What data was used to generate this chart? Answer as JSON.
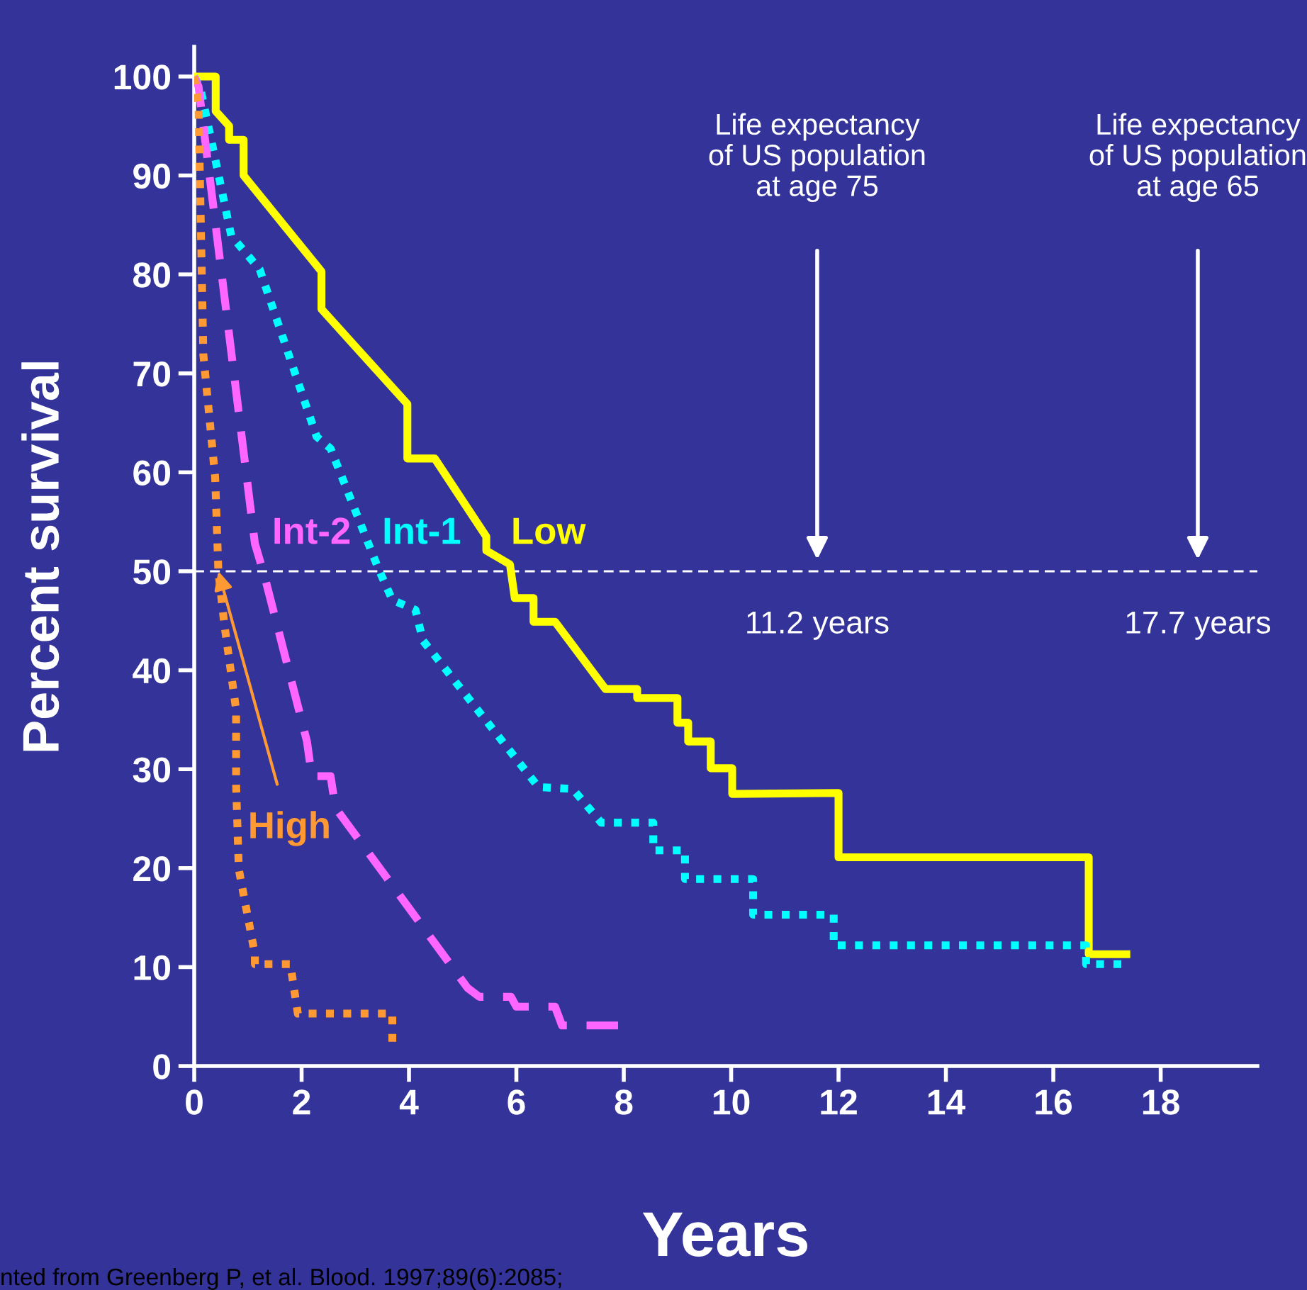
{
  "chart_data": {
    "type": "line",
    "xlabel": "Years",
    "ylabel": "Percent survival",
    "xlim": [
      0,
      19.8
    ],
    "ylim": [
      0,
      103
    ],
    "xticks": [
      0,
      2,
      4,
      6,
      8,
      10,
      12,
      14,
      16,
      18
    ],
    "yticks": [
      0,
      10,
      20,
      30,
      40,
      50,
      60,
      70,
      80,
      90,
      100
    ],
    "grid": false,
    "legend": false,
    "marker": "none",
    "ref_lines": [
      {
        "axis": "y",
        "value": 50,
        "color": "#ffffff",
        "line_style": "dashed"
      }
    ],
    "annotations": [
      "Life expectancy\nof US population\nat age 75",
      "Life expectancy\nof US population\nat age 65",
      "11.2 years",
      "17.7 years",
      "nted from Greenberg P, et al. Blood. 1997;89(6):2085;"
    ],
    "series": [
      {
        "name": "Low",
        "color": "#ffff00",
        "line_style": "solid",
        "x": [
          0,
          0.4,
          0.4,
          0.65,
          0.65,
          0.92,
          0.92,
          2.37,
          2.37,
          3.97,
          3.97,
          4.48,
          5.44,
          5.44,
          5.88,
          5.97,
          6.32,
          6.32,
          6.72,
          7.66,
          8.25,
          8.25,
          9.0,
          9.0,
          9.2,
          9.2,
          9.62,
          9.62,
          10.02,
          10.02,
          12.0,
          12.0,
          16.66,
          16.66,
          17.36
        ],
        "values": [
          100,
          100,
          96.5,
          95,
          93.6,
          93.6,
          90,
          80.3,
          76.5,
          66.9,
          61.4,
          61.4,
          53.5,
          52.1,
          50.7,
          47.3,
          47.3,
          44.9,
          44.9,
          38.1,
          38.1,
          37.2,
          37.2,
          34.7,
          34.7,
          32.8,
          32.8,
          30.1,
          30.1,
          27.5,
          27.6,
          21.1,
          21.1,
          11.3,
          11.3
        ]
      },
      {
        "name": "Int-1",
        "color": "#00ffff",
        "line_style": "dotted",
        "x": [
          0,
          0.12,
          0.69,
          1.22,
          2.28,
          2.54,
          3.42,
          3.69,
          4.12,
          4.26,
          6.41,
          7.05,
          7.58,
          8.55,
          8.55,
          9.14,
          9.14,
          10.41,
          10.41,
          11.91,
          11.91,
          16.61,
          16.61,
          17.36
        ],
        "values": [
          100,
          98.7,
          83.9,
          80.5,
          63.6,
          62.4,
          50.4,
          47.1,
          46.1,
          43.0,
          28.2,
          28.0,
          24.6,
          24.6,
          21.8,
          21.8,
          18.9,
          18.9,
          15.3,
          15.3,
          12.2,
          12.2,
          10.3,
          10.3
        ]
      },
      {
        "name": "Int-2",
        "color": "#ff66ff",
        "line_style": "dashed",
        "x": [
          0,
          0.08,
          1.13,
          1.31,
          2.1,
          2.19,
          2.54,
          2.63,
          5.09,
          5.31,
          5.9,
          6.0,
          6.72,
          6.85,
          8.04
        ],
        "values": [
          100,
          99,
          52.8,
          49.5,
          32.8,
          29.3,
          29.3,
          26.1,
          7.9,
          7.0,
          7.0,
          6.0,
          6.0,
          4.1,
          4.1
        ]
      },
      {
        "name": "High",
        "color": "#ff9933",
        "line_style": "dotted",
        "x": [
          0,
          0.08,
          0.17,
          0.39,
          0.45,
          0.56,
          0.78,
          0.78,
          0.83,
          1.13,
          1.13,
          1.79,
          1.93,
          3.69,
          3.69
        ],
        "values": [
          100,
          97,
          71.9,
          59.5,
          50,
          44.7,
          36,
          28.5,
          19.9,
          11.3,
          10.3,
          10.3,
          5.3,
          5.3,
          2.4
        ]
      }
    ]
  }
}
